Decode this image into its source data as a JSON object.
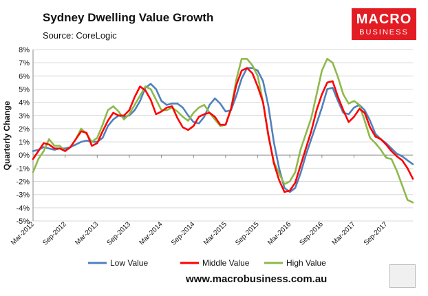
{
  "header": {
    "title": "Sydney Dwelling Value Growth",
    "source": "Source: CoreLogic"
  },
  "logo": {
    "line1": "MACRO",
    "line2": "BUSINESS"
  },
  "footer": {
    "url": "www.macrobusiness.com.au"
  },
  "colors": {
    "low": "#4f81bd",
    "middle": "#ff0000",
    "high": "#8db94a",
    "grid": "#d9d9d9"
  },
  "chart_data": {
    "type": "line",
    "title": "Sydney Dwelling Value Growth",
    "ylabel": "Quarterly Change",
    "ylim": [
      -5,
      8
    ],
    "yticks": [
      "8%",
      "7%",
      "6%",
      "5%",
      "4%",
      "3%",
      "2%",
      "1%",
      "0%",
      "-1%",
      "-2%",
      "-3%",
      "-4%",
      "-5%"
    ],
    "xticks": [
      "Mar-2012",
      "Sep-2012",
      "Mar-2013",
      "Sep-2013",
      "Mar-2014",
      "Sep-2014",
      "Mar-2015",
      "Sep-2015",
      "Mar-2016",
      "Sep-2016",
      "Mar-2017",
      "Sep-2017"
    ],
    "x_start": "Mar-2012",
    "points_per_month": 1,
    "series": [
      {
        "name": "Low Value",
        "color_key": "low",
        "values": [
          0.3,
          0.4,
          0.6,
          0.5,
          0.4,
          0.5,
          0.5,
          0.6,
          0.8,
          1.0,
          1.1,
          1.0,
          1.0,
          1.3,
          2.2,
          2.7,
          3.0,
          2.9,
          3.0,
          3.4,
          4.1,
          5.1,
          5.4,
          5.0,
          4.1,
          3.8,
          3.9,
          3.9,
          3.6,
          3.0,
          2.5,
          2.4,
          2.9,
          3.8,
          4.3,
          3.9,
          3.3,
          3.4,
          4.5,
          5.8,
          6.6,
          6.6,
          6.4,
          5.6,
          3.7,
          1.0,
          -1.0,
          -2.5,
          -2.8,
          -2.5,
          -1.4,
          0.0,
          1.2,
          2.4,
          3.6,
          5.0,
          5.1,
          4.1,
          3.2,
          3.1,
          3.6,
          3.8,
          3.4,
          2.6,
          1.6,
          1.2,
          0.9,
          0.5,
          0.1,
          -0.1,
          -0.4,
          -0.7
        ]
      },
      {
        "name": "Middle Value",
        "color_key": "middle",
        "values": [
          -0.3,
          0.3,
          0.9,
          0.8,
          0.5,
          0.5,
          0.3,
          0.6,
          1.2,
          1.8,
          1.7,
          0.7,
          0.9,
          1.8,
          2.6,
          3.2,
          3.0,
          3.0,
          3.4,
          4.4,
          5.2,
          4.9,
          4.2,
          3.1,
          3.3,
          3.6,
          3.7,
          2.8,
          2.1,
          1.9,
          2.2,
          2.9,
          3.1,
          3.2,
          2.9,
          2.3,
          2.3,
          3.5,
          5.3,
          6.4,
          6.6,
          6.2,
          5.2,
          4.0,
          1.5,
          -0.6,
          -1.9,
          -2.8,
          -2.7,
          -2.1,
          -0.8,
          0.5,
          1.8,
          3.4,
          4.6,
          5.5,
          5.6,
          4.4,
          3.4,
          2.5,
          2.9,
          3.5,
          3.2,
          2.1,
          1.4,
          1.2,
          0.8,
          0.3,
          -0.1,
          -0.4,
          -1.0,
          -1.8
        ]
      },
      {
        "name": "High Value",
        "color_key": "high",
        "values": [
          -1.3,
          -0.3,
          0.3,
          1.2,
          0.7,
          0.7,
          0.3,
          0.6,
          1.2,
          2.0,
          1.6,
          1.0,
          1.3,
          2.3,
          3.4,
          3.7,
          3.3,
          2.7,
          3.1,
          3.8,
          4.5,
          5.2,
          5.0,
          4.2,
          3.4,
          3.4,
          3.6,
          3.3,
          2.9,
          2.6,
          3.2,
          3.6,
          3.8,
          3.2,
          2.7,
          2.2,
          2.3,
          3.5,
          5.7,
          7.3,
          7.3,
          6.8,
          6.0,
          4.0,
          1.4,
          -0.5,
          -1.4,
          -2.2,
          -2.0,
          -1.3,
          0.4,
          1.6,
          2.8,
          4.6,
          6.4,
          7.3,
          7.0,
          5.9,
          4.6,
          3.9,
          4.1,
          3.8,
          2.6,
          1.3,
          0.9,
          0.4,
          -0.2,
          -0.3,
          -1.2,
          -2.3,
          -3.4,
          -3.6
        ]
      }
    ],
    "legend_position": "bottom",
    "grid": true
  }
}
